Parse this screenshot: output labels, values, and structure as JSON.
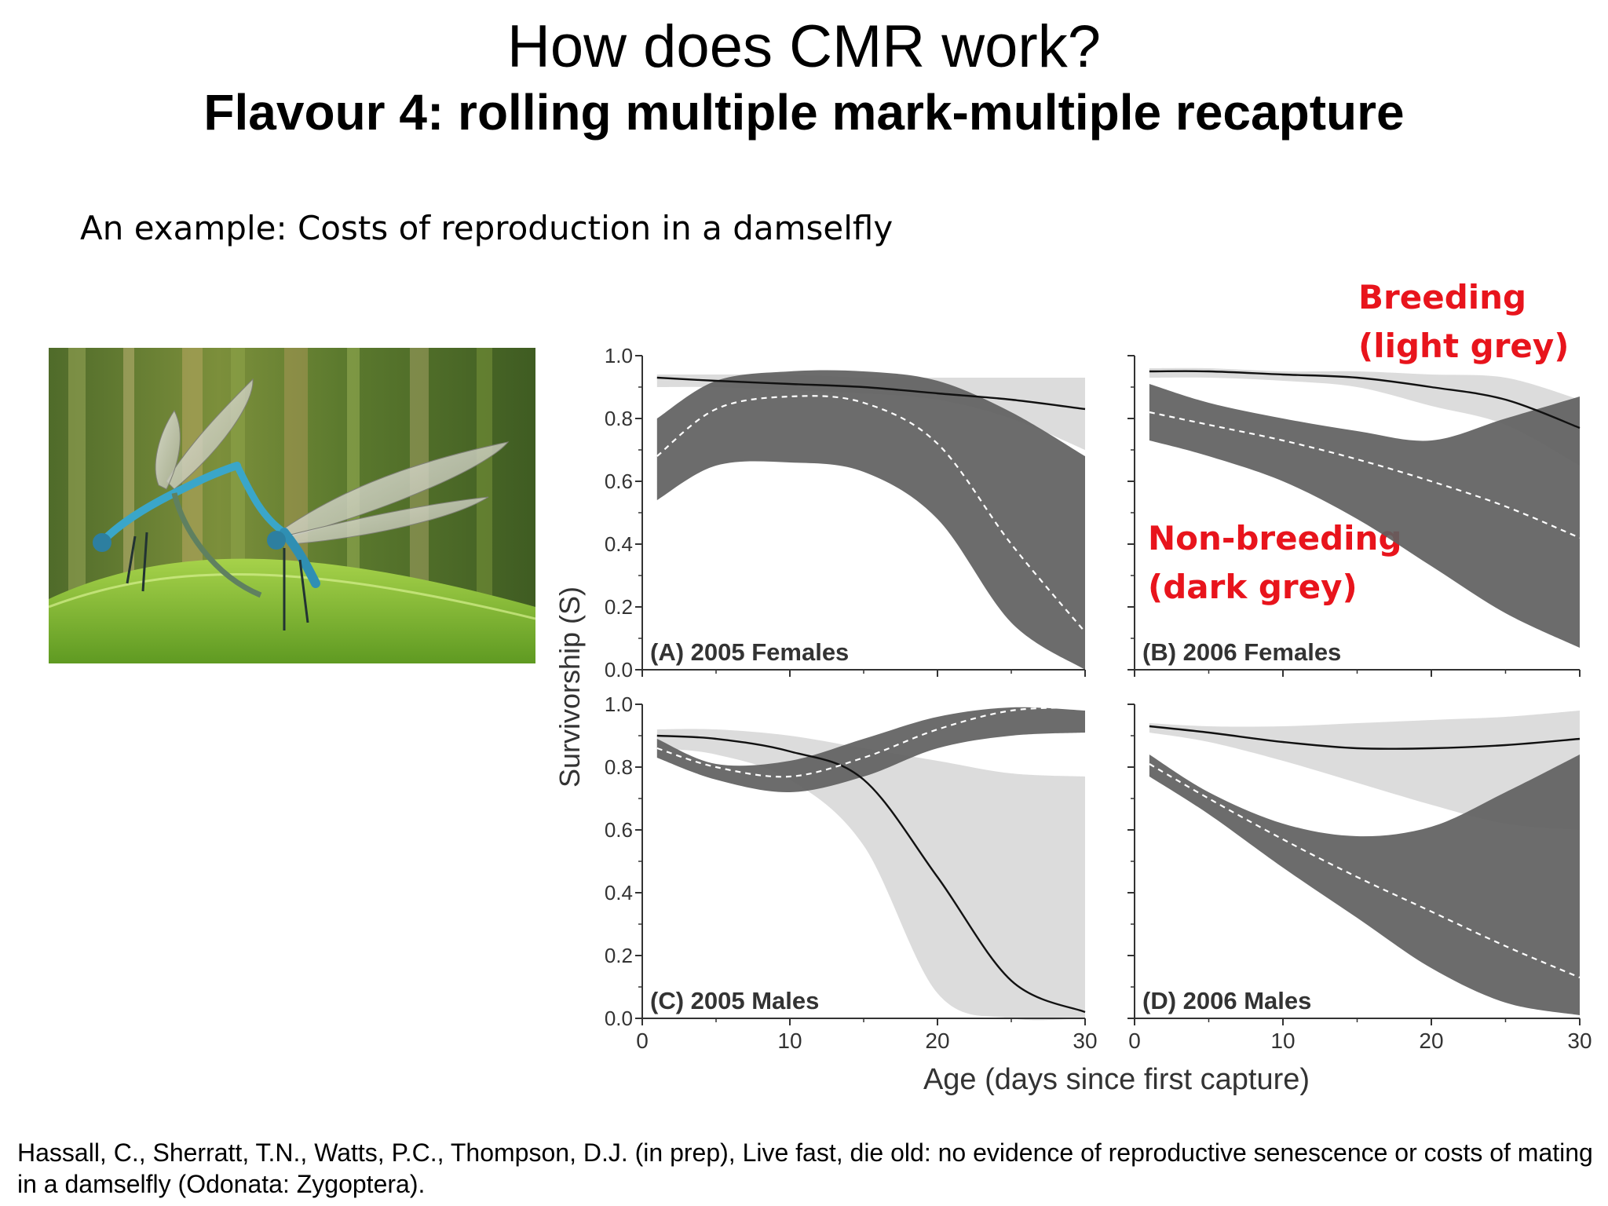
{
  "slide": {
    "title": "How does CMR work?",
    "subtitle": "Flavour 4: rolling multiple mark-multiple recapture",
    "intro": "An example: Costs of reproduction in a damselfly",
    "annotation_breeding": [
      "Breeding",
      "(light grey)"
    ],
    "annotation_nonbreeding": [
      "Non-breeding",
      "(dark grey)"
    ],
    "citation": "Hassall, C., Sherratt, T.N., Watts, P.C., Thompson, D.J. (in prep), Live fast, die old: no evidence of reproductive senescence or costs of mating in a damselfly (Odonata: Zygoptera).",
    "photo_icon": "damselfly-mating-pair-photo"
  },
  "colors": {
    "breeding_band": "#dcdcdc",
    "nonbreeding_band": "#5f5f5f",
    "breeding_line": "#111111",
    "nonbreeding_line": "#ffffff",
    "annotation": "#e8141c"
  },
  "chart_data": {
    "type": "area",
    "ylabel": "Survivorship (S)",
    "xlabel": "Age (days since first capture)",
    "xlim": [
      0,
      30
    ],
    "ylim": [
      0,
      1
    ],
    "x_ticks": [
      "0",
      "10",
      "20",
      "30"
    ],
    "y_ticks": [
      "0.0",
      "0.2",
      "0.4",
      "0.6",
      "0.8",
      "1.0"
    ],
    "x": [
      1,
      5,
      10,
      15,
      20,
      25,
      30
    ],
    "panels": [
      {
        "label": "(A) 2005 Females",
        "series": [
          {
            "band": "breeding",
            "upper": [
              0.94,
              0.94,
              0.94,
              0.93,
              0.93,
              0.93,
              0.93
            ],
            "mean": [
              0.93,
              0.92,
              0.91,
              0.9,
              0.88,
              0.86,
              0.83
            ],
            "lower": [
              0.9,
              0.9,
              0.89,
              0.88,
              0.86,
              0.8,
              0.7
            ]
          },
          {
            "band": "nonbreeding",
            "upper": [
              0.8,
              0.92,
              0.95,
              0.95,
              0.92,
              0.82,
              0.68
            ],
            "mean": [
              0.68,
              0.83,
              0.87,
              0.85,
              0.72,
              0.4,
              0.12
            ],
            "lower": [
              0.54,
              0.65,
              0.66,
              0.63,
              0.48,
              0.15,
              0.0
            ]
          }
        ]
      },
      {
        "label": "(B) 2006 Females",
        "series": [
          {
            "band": "breeding",
            "upper": [
              0.96,
              0.96,
              0.95,
              0.95,
              0.94,
              0.93,
              0.86
            ],
            "mean": [
              0.95,
              0.95,
              0.94,
              0.93,
              0.9,
              0.86,
              0.77
            ],
            "lower": [
              0.93,
              0.93,
              0.92,
              0.9,
              0.84,
              0.78,
              0.65
            ]
          },
          {
            "band": "nonbreeding",
            "upper": [
              0.91,
              0.85,
              0.8,
              0.76,
              0.73,
              0.8,
              0.87
            ],
            "mean": [
              0.82,
              0.78,
              0.73,
              0.67,
              0.6,
              0.52,
              0.42
            ],
            "lower": [
              0.73,
              0.68,
              0.6,
              0.48,
              0.33,
              0.18,
              0.07
            ]
          }
        ]
      },
      {
        "label": "(C) 2005 Males",
        "series": [
          {
            "band": "breeding",
            "upper": [
              0.92,
              0.92,
              0.9,
              0.86,
              0.82,
              0.78,
              0.77
            ],
            "mean": [
              0.9,
              0.89,
              0.85,
              0.76,
              0.45,
              0.12,
              0.02
            ],
            "lower": [
              0.86,
              0.84,
              0.76,
              0.55,
              0.08,
              0.0,
              0.0
            ]
          },
          {
            "band": "nonbreeding",
            "upper": [
              0.89,
              0.81,
              0.82,
              0.89,
              0.96,
              0.99,
              0.98
            ],
            "mean": [
              0.86,
              0.8,
              0.77,
              0.83,
              0.92,
              0.98,
              0.99
            ],
            "lower": [
              0.83,
              0.76,
              0.72,
              0.77,
              0.86,
              0.9,
              0.91
            ]
          }
        ]
      },
      {
        "label": "(D) 2006 Males",
        "series": [
          {
            "band": "breeding",
            "upper": [
              0.94,
              0.93,
              0.93,
              0.94,
              0.95,
              0.96,
              0.98
            ],
            "mean": [
              0.93,
              0.91,
              0.88,
              0.86,
              0.86,
              0.87,
              0.89
            ],
            "lower": [
              0.91,
              0.88,
              0.82,
              0.75,
              0.68,
              0.62,
              0.6
            ]
          },
          {
            "band": "nonbreeding",
            "upper": [
              0.84,
              0.72,
              0.62,
              0.58,
              0.61,
              0.72,
              0.84
            ],
            "mean": [
              0.81,
              0.7,
              0.57,
              0.45,
              0.34,
              0.23,
              0.13
            ],
            "lower": [
              0.77,
              0.65,
              0.48,
              0.32,
              0.16,
              0.05,
              0.01
            ]
          }
        ]
      }
    ]
  }
}
